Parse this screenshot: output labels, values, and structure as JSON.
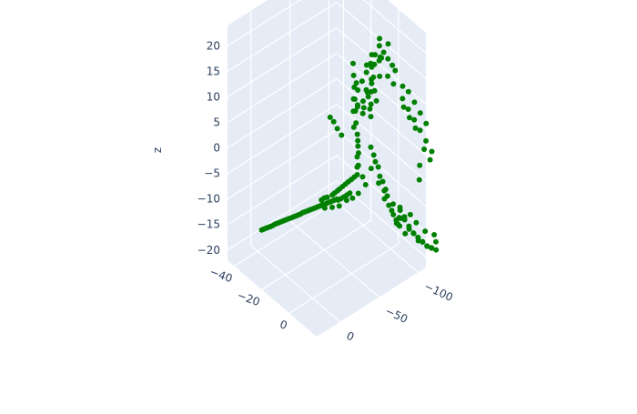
{
  "chart_data": {
    "type": "scatter3d",
    "title": "",
    "marker_color": "#008000",
    "scene": {
      "background": "#e5ecf6",
      "gridline_color": "#ffffff",
      "grid": true,
      "legend": "none"
    },
    "axes": {
      "x": {
        "title": "",
        "ticks": [
          -40,
          -20,
          0
        ],
        "range": [
          -45,
          20
        ]
      },
      "y": {
        "title": "",
        "ticks": [
          0,
          -50,
          -100
        ],
        "range": [
          -110,
          30
        ]
      },
      "z": {
        "title": "z",
        "ticks": [
          -20,
          -15,
          -10,
          -5,
          0,
          5,
          10,
          15,
          20
        ],
        "range": [
          -22,
          24
        ]
      }
    },
    "series": [
      {
        "points": [
          {
            "x": -28,
            "y": 16,
            "z": -13.5
          },
          {
            "x": -27,
            "y": 15,
            "z": -13.2
          },
          {
            "x": -26,
            "y": 14,
            "z": -12.9
          },
          {
            "x": -25,
            "y": 13,
            "z": -12.6
          },
          {
            "x": -24,
            "y": 12,
            "z": -12.3
          },
          {
            "x": -23,
            "y": 11,
            "z": -12.0
          },
          {
            "x": -22,
            "y": 10,
            "z": -11.6
          },
          {
            "x": -21,
            "y": 9,
            "z": -11.3
          },
          {
            "x": -20,
            "y": 8,
            "z": -11.0
          },
          {
            "x": -19,
            "y": 7,
            "z": -10.7
          },
          {
            "x": -18,
            "y": 6,
            "z": -10.4
          },
          {
            "x": -17,
            "y": 5,
            "z": -10.1
          },
          {
            "x": -16,
            "y": 4,
            "z": -9.8
          },
          {
            "x": -15,
            "y": 3,
            "z": -9.5
          },
          {
            "x": -14,
            "y": 2,
            "z": -9.2
          },
          {
            "x": -13,
            "y": 1,
            "z": -8.9
          },
          {
            "x": -12,
            "y": 0,
            "z": -8.6
          },
          {
            "x": -11,
            "y": -1,
            "z": -8.3
          },
          {
            "x": -10,
            "y": -2,
            "z": -8.0
          },
          {
            "x": -9,
            "y": -3,
            "z": -7.6
          },
          {
            "x": -8,
            "y": -4,
            "z": -7.3
          },
          {
            "x": -7,
            "y": -5,
            "z": -7.0
          },
          {
            "x": -6,
            "y": -6,
            "z": -6.7
          },
          {
            "x": -5,
            "y": -7,
            "z": -6.4
          },
          {
            "x": -4,
            "y": -8,
            "z": -6.1
          },
          {
            "x": -3,
            "y": -9,
            "z": -5.8
          },
          {
            "x": -2,
            "y": -10,
            "z": -5.5
          },
          {
            "x": -1,
            "y": -11,
            "z": -5.2
          },
          {
            "x": 0,
            "y": -12,
            "z": -4.9
          },
          {
            "x": 1,
            "y": -13,
            "z": -4.6
          },
          {
            "x": 2,
            "y": -14,
            "z": -4.3
          },
          {
            "x": 3,
            "y": -15,
            "z": -4.0
          },
          {
            "x": 4,
            "y": -16,
            "z": -3.7
          },
          {
            "x": 5,
            "y": -17,
            "z": -3.4
          },
          {
            "x": 6,
            "y": -18,
            "z": -3.1
          },
          {
            "x": 7,
            "y": -19,
            "z": -2.8
          },
          {
            "x": -1,
            "y": -13,
            "z": -4.2
          },
          {
            "x": 0,
            "y": -15,
            "z": -3.8
          },
          {
            "x": 1,
            "y": -17,
            "z": -3.6
          },
          {
            "x": 2,
            "y": -12,
            "z": -5.0
          },
          {
            "x": 3,
            "y": -20,
            "z": -3.0
          },
          {
            "x": 4,
            "y": -21,
            "z": -2.5
          },
          {
            "x": 5,
            "y": -23,
            "z": -2.0
          },
          {
            "x": 6,
            "y": -24,
            "z": -1.5
          },
          {
            "x": 7,
            "y": -26,
            "z": -1.0
          },
          {
            "x": 8,
            "y": -28,
            "z": -0.5
          },
          {
            "x": 9,
            "y": -30,
            "z": 0.0
          },
          {
            "x": 10,
            "y": -32,
            "z": 0.5
          },
          {
            "x": 11,
            "y": -34,
            "z": 1.0
          },
          {
            "x": 12,
            "y": -36,
            "z": 1.5
          },
          {
            "x": 6,
            "y": -22,
            "z": -3.5
          },
          {
            "x": 7,
            "y": -24,
            "z": -3.2
          },
          {
            "x": 8,
            "y": -26,
            "z": -2.8
          },
          {
            "x": 9,
            "y": -28,
            "z": -2.4
          },
          {
            "x": 10,
            "y": -30,
            "z": -2.0
          },
          {
            "x": 8,
            "y": -20,
            "z": -4.0
          },
          {
            "x": 10,
            "y": -26,
            "z": -3.0
          },
          {
            "x": 12,
            "y": -30,
            "z": -2.5
          },
          {
            "x": 14,
            "y": -34,
            "z": -1.5
          },
          {
            "x": 4,
            "y": -18,
            "z": -5.0
          },
          {
            "x": 12,
            "y": -36,
            "z": 3.0
          },
          {
            "x": 12,
            "y": -36,
            "z": 5.0
          },
          {
            "x": 12,
            "y": -37,
            "z": 7.0
          },
          {
            "x": 11,
            "y": -38,
            "z": 9.0
          },
          {
            "x": 10,
            "y": -38,
            "z": 11.0
          },
          {
            "x": 9,
            "y": -39,
            "z": 13.0
          },
          {
            "x": 8,
            "y": -40,
            "z": 15.0
          },
          {
            "x": 7,
            "y": -41,
            "z": 17.0
          },
          {
            "x": 6,
            "y": -42,
            "z": 19.0
          },
          {
            "x": 5,
            "y": -43,
            "z": 21.0
          },
          {
            "x": 13,
            "y": -36,
            "z": 6.0
          },
          {
            "x": 13,
            "y": -35,
            "z": 8.5
          },
          {
            "x": 14,
            "y": -34,
            "z": 4.0
          },
          {
            "x": 10,
            "y": -40,
            "z": 14.0
          },
          {
            "x": 8,
            "y": -42,
            "z": 18.0
          },
          {
            "x": 9,
            "y": -37,
            "z": 10.0
          },
          {
            "x": 14,
            "y": -40,
            "z": 16.0
          },
          {
            "x": 16,
            "y": -42,
            "z": 18.0
          },
          {
            "x": 18,
            "y": -44,
            "z": 20.0
          },
          {
            "x": 15,
            "y": -38,
            "z": 14.0
          },
          {
            "x": 4,
            "y": -30,
            "z": 8.0
          },
          {
            "x": 2,
            "y": -28,
            "z": 9.0
          },
          {
            "x": 0,
            "y": -27,
            "z": 10.0
          },
          {
            "x": -2,
            "y": -26,
            "z": 10.5
          },
          {
            "x": 16,
            "y": -36,
            "z": 2.0
          },
          {
            "x": 17,
            "y": -38,
            "z": 0.5
          },
          {
            "x": 14,
            "y": -50,
            "z": 12.0
          },
          {
            "x": 13,
            "y": -52,
            "z": 14.0
          },
          {
            "x": 12,
            "y": -54,
            "z": 16.0
          },
          {
            "x": 11,
            "y": -56,
            "z": 18.0
          },
          {
            "x": 10,
            "y": -58,
            "z": 20.0
          },
          {
            "x": 9,
            "y": -60,
            "z": 22.0
          },
          {
            "x": 12,
            "y": -58,
            "z": 21.0
          },
          {
            "x": 13,
            "y": -55,
            "z": 19.0
          },
          {
            "x": 15,
            "y": -53,
            "z": 17.0
          },
          {
            "x": 16,
            "y": -60,
            "z": 23.0
          },
          {
            "x": 14,
            "y": -62,
            "z": 22.5
          },
          {
            "x": 11,
            "y": -52,
            "z": 15.0
          },
          {
            "x": 17,
            "y": -56,
            "z": 20.0
          },
          {
            "x": 18,
            "y": -50,
            "z": 16.0
          },
          {
            "x": 10,
            "y": -48,
            "z": 13.0
          },
          {
            "x": 15,
            "y": -47,
            "z": 14.0
          },
          {
            "x": 14,
            "y": -50,
            "z": 6.0
          },
          {
            "x": 15,
            "y": -54,
            "z": 3.0
          },
          {
            "x": 16,
            "y": -58,
            "z": 0.0
          },
          {
            "x": 17,
            "y": -62,
            "z": -3.0
          },
          {
            "x": 18,
            "y": -66,
            "z": -6.0
          },
          {
            "x": 19,
            "y": -70,
            "z": -8.0
          },
          {
            "x": 20,
            "y": -74,
            "z": -10.0
          },
          {
            "x": 16,
            "y": -56,
            "z": 2.0
          },
          {
            "x": 17,
            "y": -60,
            "z": -1.0
          },
          {
            "x": 18,
            "y": -64,
            "z": -4.0
          },
          {
            "x": 19,
            "y": -68,
            "z": -7.0
          },
          {
            "x": 20,
            "y": -72,
            "z": -9.0
          },
          {
            "x": 15,
            "y": -52,
            "z": 4.5
          },
          {
            "x": 18,
            "y": -62,
            "z": -2.5
          },
          {
            "x": 20,
            "y": -68,
            "z": -5.5
          },
          {
            "x": 21,
            "y": -74,
            "z": -8.5
          },
          {
            "x": 16,
            "y": -64,
            "z": -5.0
          },
          {
            "x": 14,
            "y": -60,
            "z": -2.0
          },
          {
            "x": 12,
            "y": -54,
            "z": 1.0
          },
          {
            "x": 19,
            "y": -78,
            "z": -11.0
          },
          {
            "x": 22,
            "y": -80,
            "z": -12.0
          },
          {
            "x": 18,
            "y": -76,
            "z": -10.5
          },
          {
            "x": -10,
            "y": -70,
            "z": 8.0
          },
          {
            "x": -8,
            "y": -72,
            "z": 10.0
          },
          {
            "x": -6,
            "y": -74,
            "z": 12.0
          },
          {
            "x": -4,
            "y": -76,
            "z": 14.0
          },
          {
            "x": -2,
            "y": -78,
            "z": 16.0
          },
          {
            "x": 0,
            "y": -80,
            "z": 18.0
          },
          {
            "x": 2,
            "y": -82,
            "z": 20.0
          },
          {
            "x": 4,
            "y": -84,
            "z": 19.0
          },
          {
            "x": 6,
            "y": -86,
            "z": 18.0
          },
          {
            "x": 8,
            "y": -88,
            "z": 17.0
          },
          {
            "x": -9,
            "y": -68,
            "z": 6.0
          },
          {
            "x": -7,
            "y": -70,
            "z": 7.5
          },
          {
            "x": 1,
            "y": -84,
            "z": 21.0
          },
          {
            "x": 3,
            "y": -80,
            "z": 17.5
          },
          {
            "x": 5,
            "y": -88,
            "z": 20.5
          },
          {
            "x": 7,
            "y": -84,
            "z": 15.0
          },
          {
            "x": 9,
            "y": -90,
            "z": 16.0
          },
          {
            "x": -3,
            "y": -74,
            "z": 11.0
          },
          {
            "x": -5,
            "y": -78,
            "z": 15.0
          },
          {
            "x": 10,
            "y": -86,
            "z": 14.0
          },
          {
            "x": 20,
            "y": -80,
            "z": 14.0
          },
          {
            "x": 22,
            "y": -84,
            "z": 12.0
          },
          {
            "x": 24,
            "y": -88,
            "z": 10.0
          },
          {
            "x": 26,
            "y": -92,
            "z": 8.0
          },
          {
            "x": 28,
            "y": -96,
            "z": 6.0
          },
          {
            "x": 30,
            "y": -100,
            "z": 4.0
          },
          {
            "x": 21,
            "y": -86,
            "z": 15.0
          },
          {
            "x": 23,
            "y": -90,
            "z": 13.0
          },
          {
            "x": 25,
            "y": -94,
            "z": 11.0
          },
          {
            "x": 27,
            "y": -98,
            "z": 9.0
          },
          {
            "x": 22,
            "y": -78,
            "z": 13.0
          },
          {
            "x": 24,
            "y": -82,
            "z": 11.0
          },
          {
            "x": 26,
            "y": -86,
            "z": 9.0
          },
          {
            "x": 29,
            "y": -92,
            "z": 5.0
          },
          {
            "x": 19,
            "y": -82,
            "z": 16.0
          },
          {
            "x": 31,
            "y": -96,
            "z": 3.0
          },
          {
            "x": 28,
            "y": -88,
            "z": 2.0
          },
          {
            "x": 30,
            "y": -84,
            "z": 0.0
          },
          {
            "x": 24,
            "y": -70,
            "z": -6.0
          },
          {
            "x": 25,
            "y": -74,
            "z": -8.0
          },
          {
            "x": 26,
            "y": -78,
            "z": -10.0
          },
          {
            "x": 27,
            "y": -82,
            "z": -11.0
          },
          {
            "x": 28,
            "y": -86,
            "z": -12.0
          },
          {
            "x": 29,
            "y": -90,
            "z": -13.0
          },
          {
            "x": 30,
            "y": -94,
            "z": -14.0
          },
          {
            "x": 31,
            "y": -98,
            "z": -14.5
          },
          {
            "x": 32,
            "y": -102,
            "z": -15.0
          },
          {
            "x": 26,
            "y": -72,
            "z": -7.0
          },
          {
            "x": 27,
            "y": -76,
            "z": -9.0
          },
          {
            "x": 28,
            "y": -80,
            "z": -10.5
          },
          {
            "x": 29,
            "y": -84,
            "z": -11.5
          },
          {
            "x": 30,
            "y": -88,
            "z": -12.5
          },
          {
            "x": 31,
            "y": -92,
            "z": -13.5
          },
          {
            "x": 32,
            "y": -96,
            "z": -14.0
          },
          {
            "x": 25,
            "y": -68,
            "z": -5.0
          },
          {
            "x": 23,
            "y": -72,
            "z": -8.0
          },
          {
            "x": 27,
            "y": -88,
            "z": -13.0
          },
          {
            "x": 33,
            "y": -100,
            "z": -13.0
          },
          {
            "x": 34,
            "y": -96,
            "z": -11.0
          },
          {
            "x": 30,
            "y": -80,
            "z": -8.0
          },
          {
            "x": 28,
            "y": -76,
            "z": -6.5
          },
          {
            "x": 32,
            "y": -88,
            "z": -10.0
          }
        ]
      }
    ]
  }
}
